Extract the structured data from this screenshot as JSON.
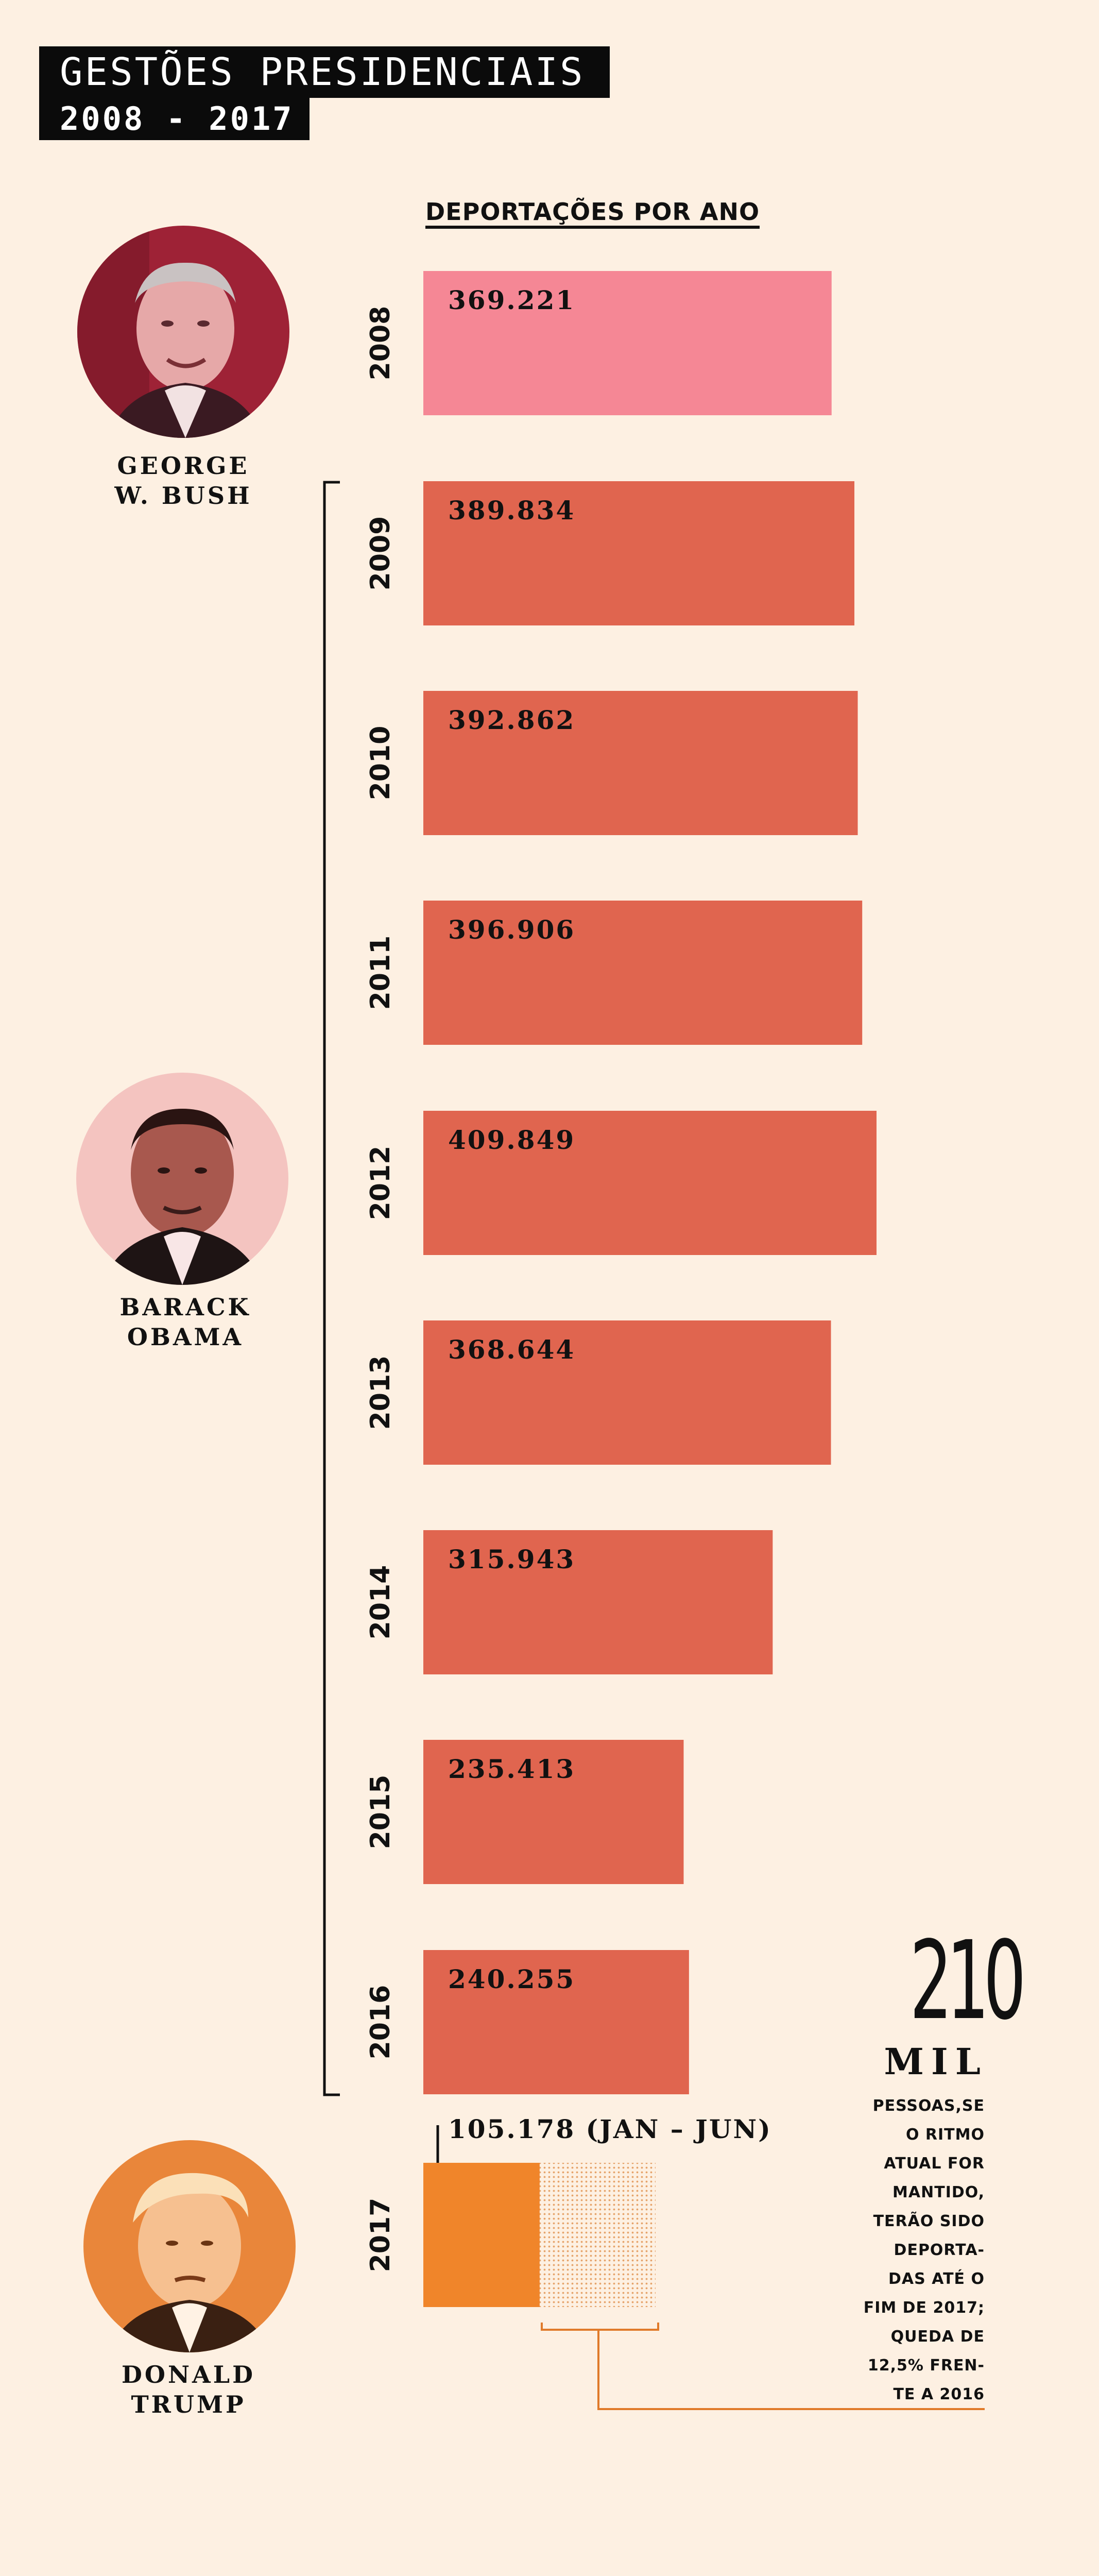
{
  "header": {
    "title": "GESTÕES PRESIDENCIAIS",
    "subtitle": "2008 - 2017"
  },
  "presidents": [
    {
      "name": "GEORGE W. BUSH",
      "line1": "GEORGE",
      "line2": "W. BUSH",
      "tint": "#b22a3e"
    },
    {
      "name": "BARACK OBAMA",
      "line1": "BARACK",
      "line2": "OBAMA",
      "tint": "#e89a8e"
    },
    {
      "name": "DONALD TRUMP",
      "line1": "DONALD",
      "line2": "TRUMP",
      "tint": "#e8782a"
    }
  ],
  "chart_data": {
    "type": "bar",
    "orientation": "horizontal",
    "title": "DEPORTAÇÕES POR ANO",
    "categories": [
      "2008",
      "2009",
      "2010",
      "2011",
      "2012",
      "2013",
      "2014",
      "2015",
      "2016",
      "2017"
    ],
    "values": [
      369221,
      389834,
      392862,
      396906,
      409849,
      368644,
      315943,
      235413,
      240255,
      105178
    ],
    "value_labels": [
      "369.221",
      "389.834",
      "392.862",
      "396.906",
      "409.849",
      "368.644",
      "315.943",
      "235.413",
      "240.255",
      "105.178 (JAN – JUN)"
    ],
    "president_by_year": [
      "GEORGE W. BUSH",
      "BARACK OBAMA",
      "BARACK OBAMA",
      "BARACK OBAMA",
      "BARACK OBAMA",
      "BARACK OBAMA",
      "BARACK OBAMA",
      "BARACK OBAMA",
      "BARACK OBAMA",
      "DONALD TRUMP"
    ],
    "projection": {
      "year": "2017",
      "value": 210000
    },
    "colors": {
      "bush": "#f58795",
      "obama": "#e0654f",
      "trump": "#f0852a",
      "projection_dots": "#e6a36a"
    },
    "xlim": [
      0,
      409849
    ]
  },
  "annotation": {
    "value": "210",
    "unit": "MIL",
    "lines": [
      "PESSOAS,SE",
      "O RITMO",
      "ATUAL FOR",
      "MANTIDO,",
      "TERÃO SIDO",
      "DEPORTA-",
      "DAS ATÉ O",
      "FIM DE 2017;",
      "QUEDA DE",
      "12,5% FREN-",
      "TE A 2016"
    ]
  }
}
